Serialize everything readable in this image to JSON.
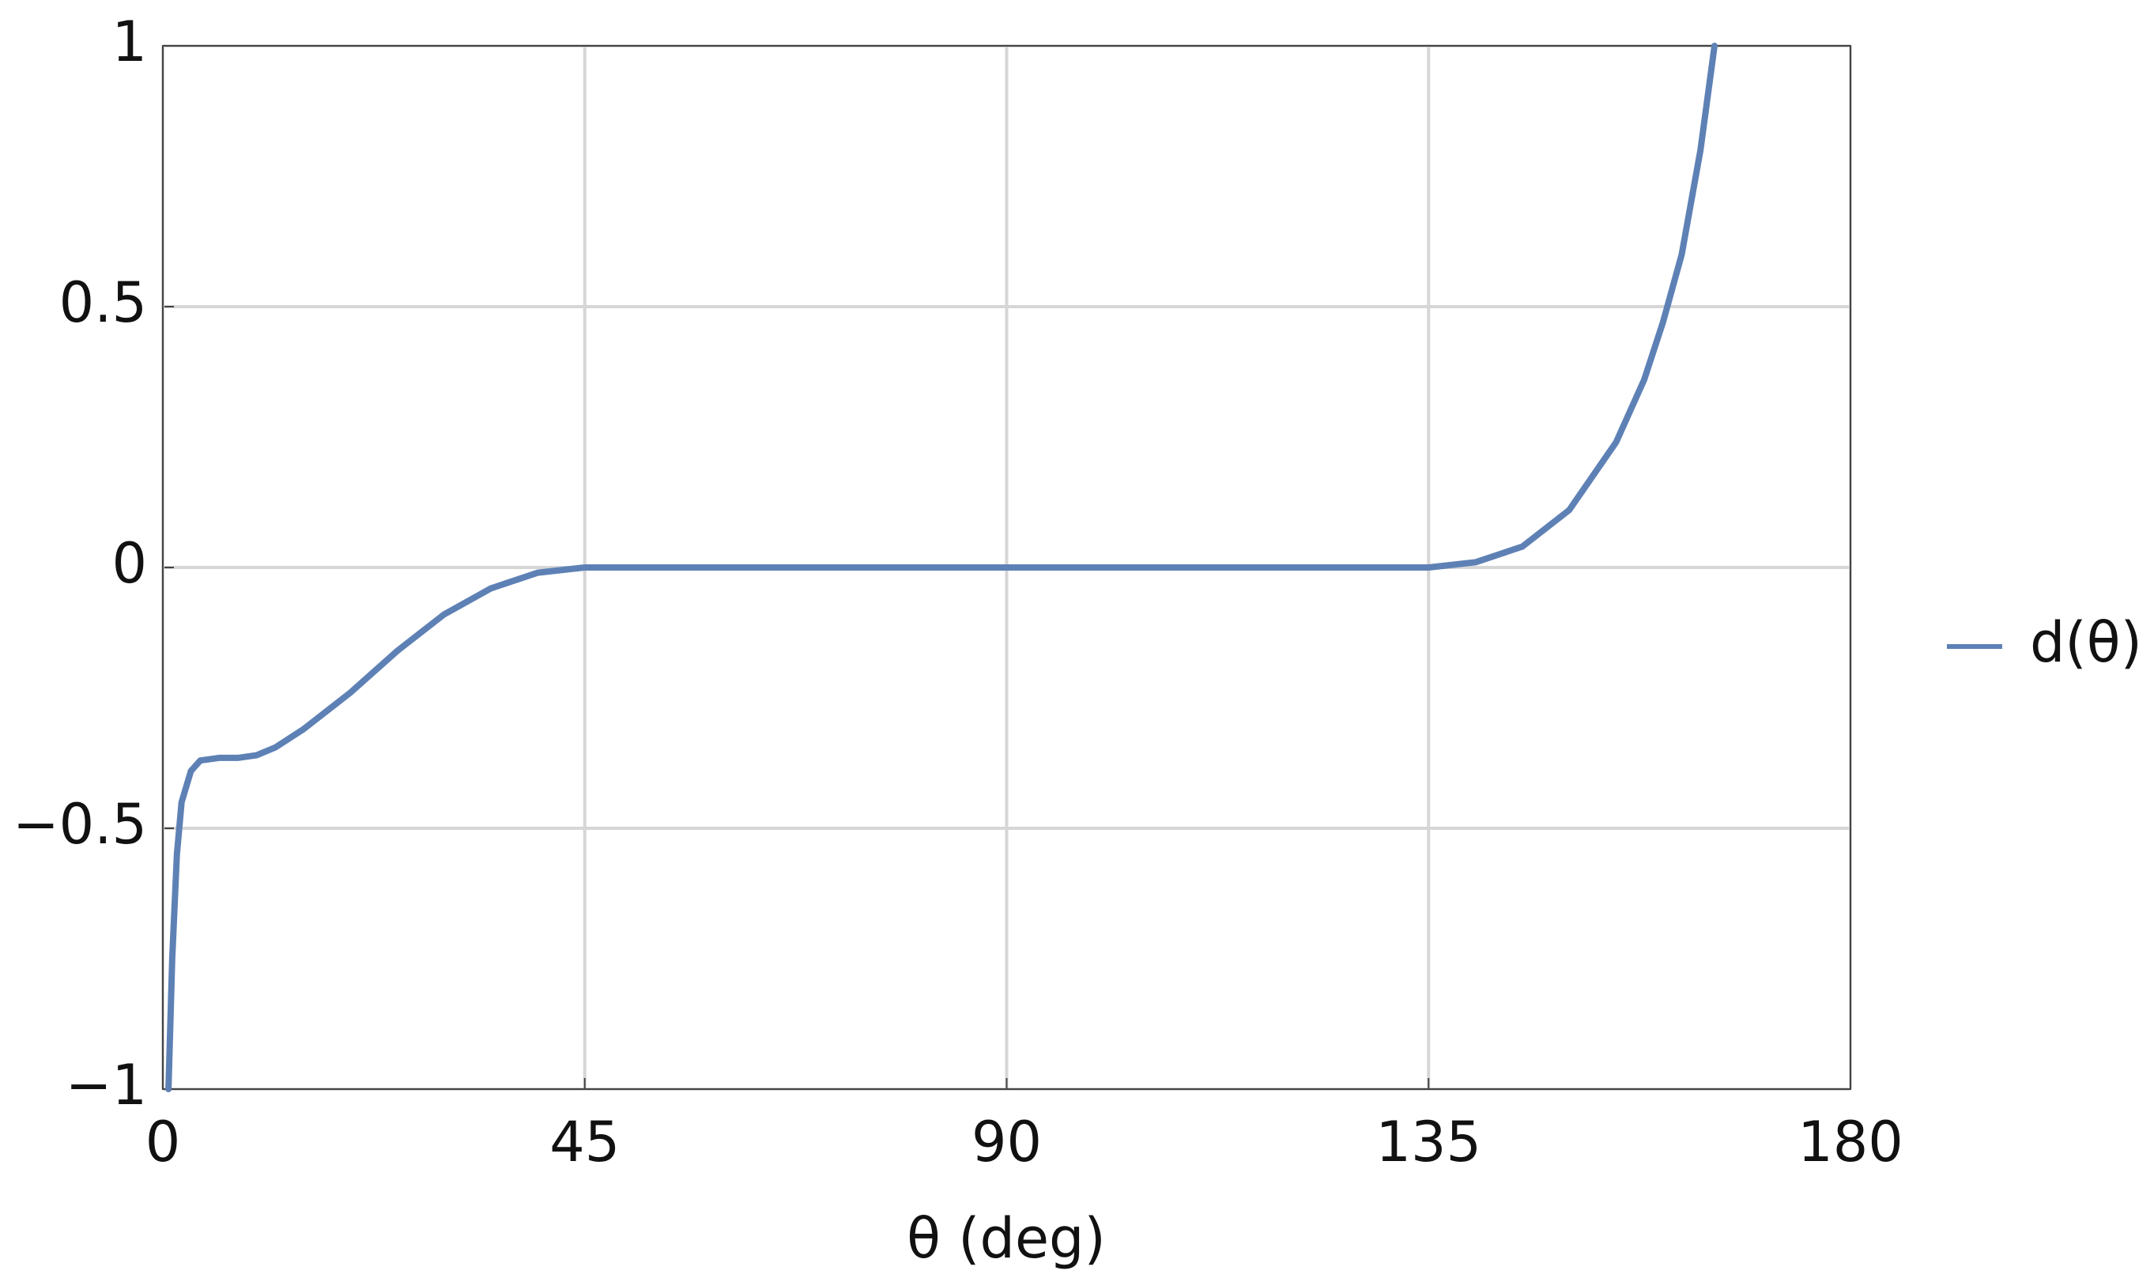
{
  "chart_data": {
    "type": "line",
    "x_label": "θ (deg)",
    "x": [
      0.6,
      1,
      1.5,
      2,
      3,
      4,
      6,
      8,
      10,
      12,
      15,
      20,
      25,
      30,
      35,
      40,
      45,
      90,
      135,
      140,
      145,
      150,
      155,
      158,
      160,
      162,
      164,
      165.5
    ],
    "series": [
      {
        "name": "d(θ)",
        "color": "#5e81b5",
        "values": [
          -1,
          -0.75,
          -0.55,
          -0.45,
          -0.39,
          -0.37,
          -0.365,
          -0.365,
          -0.36,
          -0.345,
          -0.31,
          -0.24,
          -0.16,
          -0.09,
          -0.04,
          -0.01,
          0,
          0,
          0,
          0.01,
          0.04,
          0.11,
          0.24,
          0.36,
          0.47,
          0.6,
          0.8,
          1
        ]
      }
    ],
    "xlim": [
      0,
      180
    ],
    "xticks": [
      0,
      45,
      90,
      135,
      180
    ],
    "ylim": [
      -1,
      1
    ],
    "yticks": [
      {
        "value": -1,
        "label": "−1"
      },
      {
        "value": -0.5,
        "label": "−0.5"
      },
      0,
      0.5,
      1
    ],
    "grid": true,
    "legend": "right"
  }
}
